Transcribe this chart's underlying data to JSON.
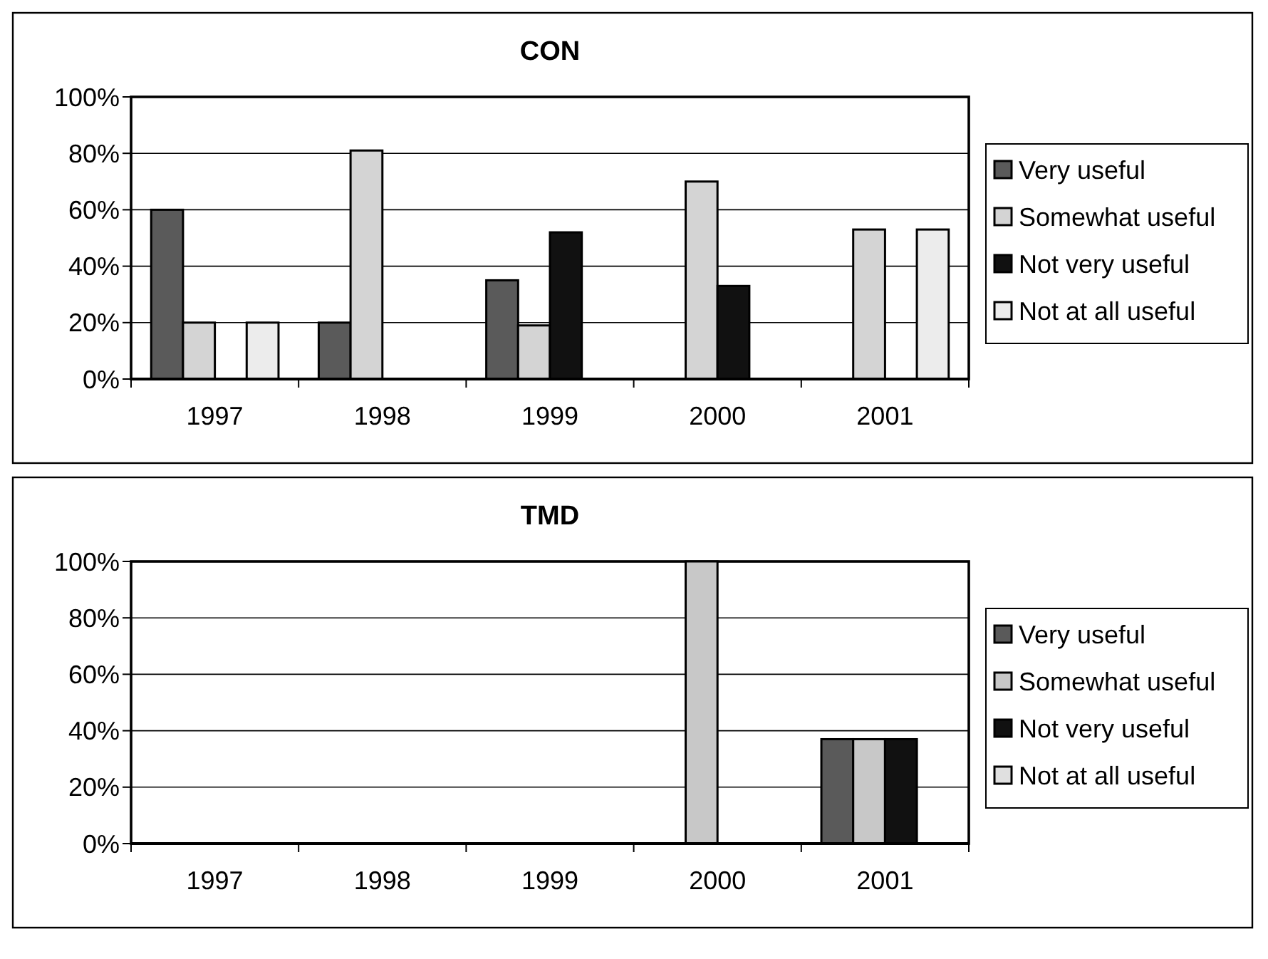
{
  "chart_data": [
    {
      "type": "bar",
      "title": "CON",
      "categories": [
        "1997",
        "1998",
        "1999",
        "2000",
        "2001"
      ],
      "ylim": [
        0,
        100
      ],
      "yticks": [
        {
          "value": 0,
          "label": "0%"
        },
        {
          "value": 20,
          "label": "20%"
        },
        {
          "value": 40,
          "label": "40%"
        },
        {
          "value": 60,
          "label": "60%"
        },
        {
          "value": 80,
          "label": "80%"
        },
        {
          "value": 100,
          "label": "100%"
        }
      ],
      "grid": "y",
      "legend": "right",
      "series": [
        {
          "name": "Very useful",
          "color": "#5a5a5a",
          "values": [
            60,
            20,
            35,
            0,
            0
          ]
        },
        {
          "name": "Somewhat useful",
          "color": "#d4d4d4",
          "values": [
            20,
            81,
            19,
            70,
            53
          ]
        },
        {
          "name": "Not very useful",
          "color": "#111111",
          "values": [
            0,
            0,
            52,
            33,
            0
          ]
        },
        {
          "name": "Not at all useful",
          "color": "#ececec",
          "values": [
            20,
            0,
            0,
            0,
            53
          ]
        }
      ]
    },
    {
      "type": "bar",
      "title": "TMD",
      "categories": [
        "1997",
        "1998",
        "1999",
        "2000",
        "2001"
      ],
      "ylim": [
        0,
        100
      ],
      "yticks": [
        {
          "value": 0,
          "label": "0%"
        },
        {
          "value": 20,
          "label": "20%"
        },
        {
          "value": 40,
          "label": "40%"
        },
        {
          "value": 60,
          "label": "60%"
        },
        {
          "value": 80,
          "label": "80%"
        },
        {
          "value": 100,
          "label": "100%"
        }
      ],
      "grid": "y",
      "legend": "right",
      "series": [
        {
          "name": "Very useful",
          "color": "#5a5a5a",
          "values": [
            0,
            0,
            0,
            0,
            37
          ]
        },
        {
          "name": "Somewhat useful",
          "color": "#c8c8c8",
          "values": [
            0,
            0,
            0,
            100,
            37
          ]
        },
        {
          "name": "Not very useful",
          "color": "#111111",
          "values": [
            0,
            0,
            0,
            0,
            37
          ]
        },
        {
          "name": "Not at all useful",
          "color": "#e0e0e0",
          "values": [
            0,
            0,
            0,
            0,
            0
          ]
        }
      ]
    }
  ]
}
